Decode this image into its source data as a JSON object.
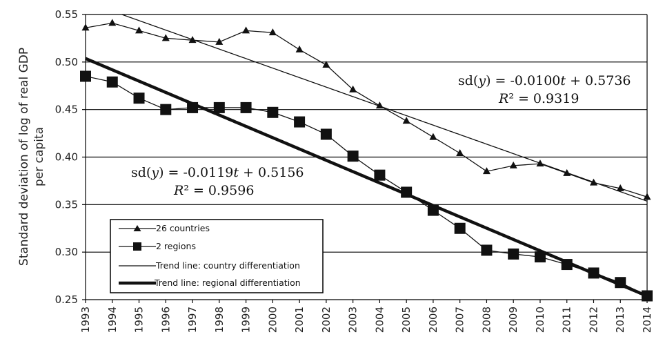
{
  "chart_data": {
    "type": "line",
    "ylabel_line1": "Standard deviation of log of real GDP",
    "ylabel_line2": "per capita",
    "ylim": [
      0.25,
      0.55
    ],
    "yticks": [
      "0.25",
      "0.30",
      "0.35",
      "0.40",
      "0.45",
      "0.50",
      "0.55"
    ],
    "x": [
      "1993",
      "1994",
      "1995",
      "1996",
      "1997",
      "1998",
      "1999",
      "2000",
      "2001",
      "2002",
      "2003",
      "2004",
      "2005",
      "2006",
      "2007",
      "2008",
      "2009",
      "2010",
      "2011",
      "2012",
      "2013",
      "2014"
    ],
    "grid": "horizontal",
    "legend_position": "bottom-left",
    "series": [
      {
        "name": "26 countries",
        "marker": "triangle",
        "values": [
          0.536,
          0.541,
          0.533,
          0.525,
          0.523,
          0.521,
          0.533,
          0.531,
          0.513,
          0.497,
          0.471,
          0.454,
          0.438,
          0.421,
          0.404,
          0.385,
          0.391,
          0.393,
          0.383,
          0.373,
          0.367,
          0.358
        ]
      },
      {
        "name": "2 regions",
        "marker": "square",
        "values": [
          0.485,
          0.479,
          0.462,
          0.45,
          0.452,
          0.452,
          0.452,
          0.447,
          0.437,
          0.424,
          0.401,
          0.381,
          0.363,
          0.344,
          0.325,
          0.302,
          0.298,
          0.295,
          0.287,
          0.278,
          0.268,
          0.254
        ]
      }
    ],
    "trendlines": [
      {
        "name": "Trend line: country differentiation",
        "slope": -0.01,
        "intercept": 0.5736,
        "width": "thin",
        "equation": "sd(y) = -0.0100t + 0.5736",
        "r2": "R² = 0.9319"
      },
      {
        "name": "Trend line: regional differentiation",
        "slope": -0.0119,
        "intercept": 0.5156,
        "width": "thick",
        "equation": "sd(y) = -0.0119t + 0.5156",
        "r2": "R² = 0.9596"
      }
    ],
    "annotations": {
      "country_eq_prefix": "sd(",
      "country_eq_var": "y",
      "country_eq_mid": ") = -0.0100",
      "country_eq_t": "t",
      "country_eq_suffix": " + 0.5736",
      "country_r2_R": "R",
      "country_r2_rest": "² = 0.9319",
      "regional_eq_prefix": "sd(",
      "regional_eq_var": "y",
      "regional_eq_mid": ") = -0.0119",
      "regional_eq_t": "t",
      "regional_eq_suffix": " + 0.5156",
      "regional_r2_R": "R",
      "regional_r2_rest": "² = 0.9596"
    },
    "legend": [
      "26 countries",
      "2 regions",
      "Trend line: country differentiation",
      "Trend line: regional differentiation"
    ]
  }
}
